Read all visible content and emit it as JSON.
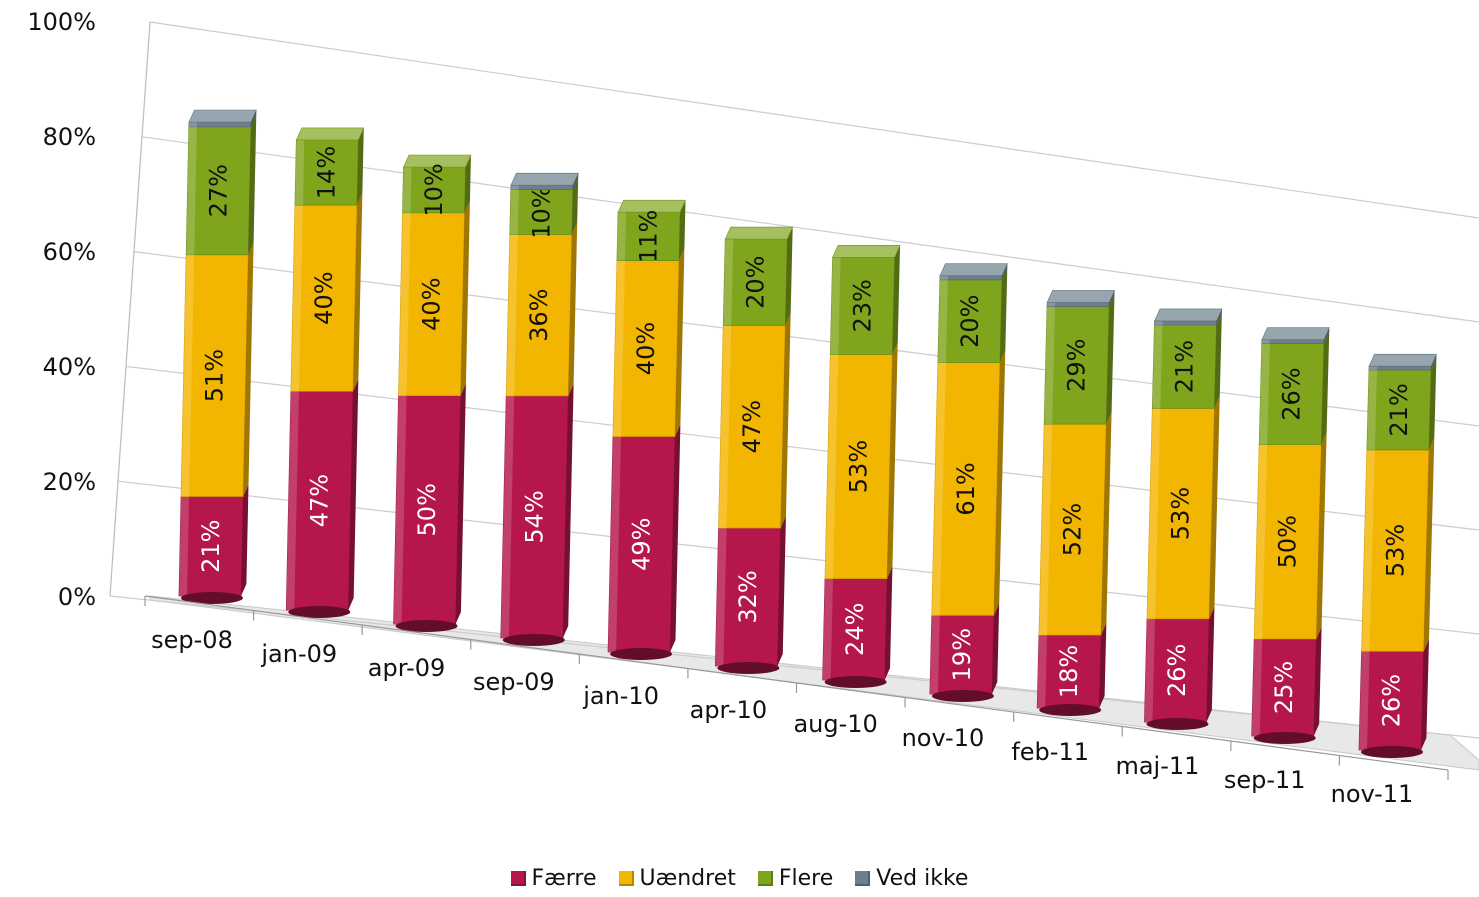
{
  "chart_data": {
    "type": "bar",
    "stacked": true,
    "percent_stacked": true,
    "three_d": true,
    "categories": [
      "sep-08",
      "jan-09",
      "apr-09",
      "sep-09",
      "jan-10",
      "apr-10",
      "aug-10",
      "nov-10",
      "feb-11",
      "maj-11",
      "sep-11",
      "nov-11"
    ],
    "series": [
      {
        "name": "Færre",
        "color": "#b5174a",
        "label_color": "#ffffff",
        "values": [
          21,
          47,
          50,
          54,
          49,
          32,
          24,
          19,
          18,
          26,
          25,
          26
        ]
      },
      {
        "name": "Uændret",
        "color": "#f3b600",
        "label_color": "#111111",
        "values": [
          51,
          40,
          40,
          36,
          40,
          47,
          53,
          61,
          52,
          53,
          50,
          53
        ]
      },
      {
        "name": "Flere",
        "color": "#7fa51c",
        "label_color": "#111111",
        "values": [
          27,
          14,
          10,
          10,
          11,
          20,
          23,
          20,
          29,
          21,
          26,
          21
        ]
      },
      {
        "name": "Ved ikke",
        "color": "#6b7f8c",
        "label_color": "#111111",
        "values": [
          1,
          0,
          0,
          1,
          0,
          0,
          0,
          1,
          1,
          1,
          1,
          1
        ]
      }
    ],
    "ylim": [
      0,
      100
    ],
    "yticks": [
      "0%",
      "20%",
      "40%",
      "60%",
      "80%",
      "100%"
    ],
    "grid": true,
    "legend": "bottom"
  }
}
